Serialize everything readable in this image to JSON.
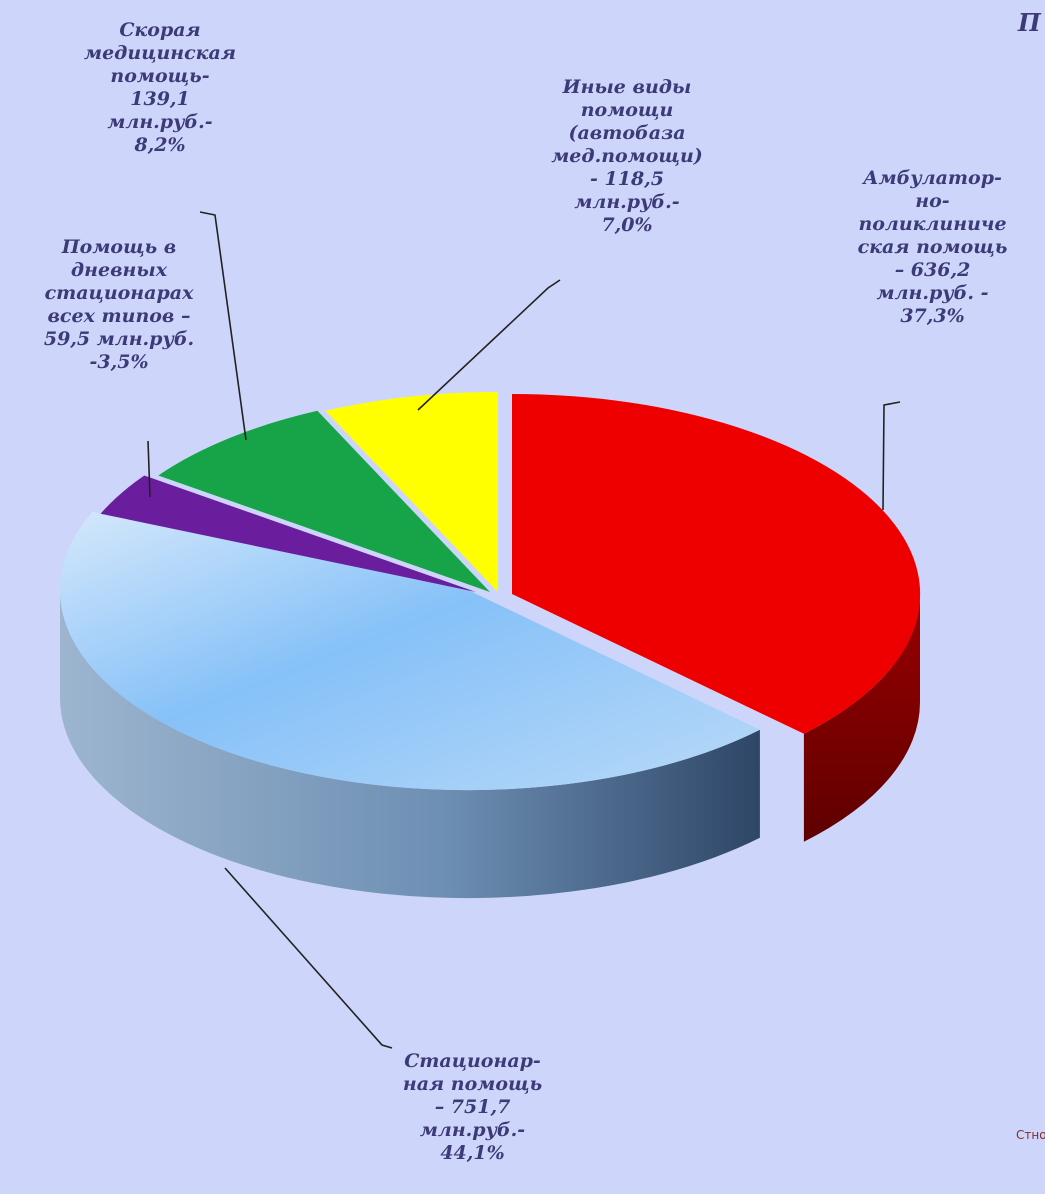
{
  "chart_data": {
    "type": "pie",
    "slices": [
      {
        "key": "ambulatory",
        "label_lines": [
          "Амбулатор-",
          "но-",
          "поликлиниче",
          "ская помощь",
          "– 636,2",
          "млн.руб. -",
          "37,3%"
        ],
        "value": 636.2,
        "percent": 37.3,
        "color": "#ee0000"
      },
      {
        "key": "inpatient",
        "label_lines": [
          "Стационар-",
          "ная помощь",
          "– 751,7",
          "млн.руб.-",
          "44,1%"
        ],
        "value": 751.7,
        "percent": 44.1,
        "color": "#7fbaf5"
      },
      {
        "key": "day_hospital",
        "label_lines": [
          "Помощь в",
          "дневных",
          "стационарах",
          "всех типов –",
          "59,5 млн.руб.",
          "-3,5%"
        ],
        "value": 59.5,
        "percent": 3.5,
        "color": "#6a1e9e"
      },
      {
        "key": "emergency",
        "label_lines": [
          "Скорая",
          "медицинская",
          "помощь-",
          "139,1",
          "млн.руб.-",
          "8,2%"
        ],
        "value": 139.1,
        "percent": 8.2,
        "color": "#17a348"
      },
      {
        "key": "other",
        "label_lines": [
          "Иные виды",
          "помощи",
          "(автобаза",
          "мед.помощи)",
          "- 118,5",
          "млн.руб.-",
          "7,0%"
        ],
        "value": 118.5,
        "percent": 7.0,
        "color": "#ffff00"
      }
    ]
  },
  "title_fragment": "П",
  "corner_fragment_lines": [
    "Ст",
    "но"
  ]
}
